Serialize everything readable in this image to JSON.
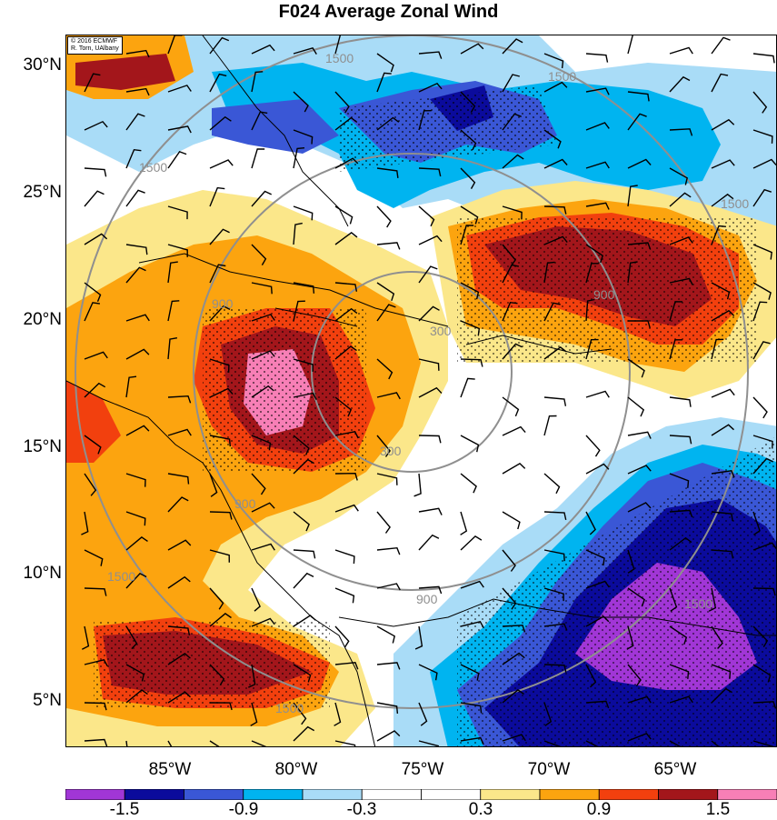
{
  "title": "F024 Average Zonal Wind",
  "credit": {
    "line1": "© 2016 ECMWF",
    "line2": "R. Torn, UAlbany"
  },
  "map": {
    "y_labels": [
      "30°N",
      "25°N",
      "20°N",
      "15°N",
      "10°N",
      "5°N"
    ],
    "x_labels": [
      "85°W",
      "80°W",
      "75°W",
      "70°W",
      "65°W"
    ],
    "range_ring_labels": [
      "300",
      "300",
      "900",
      "900",
      "900",
      "900",
      "1500",
      "1500",
      "1500",
      "1500",
      "1500",
      "1500",
      "1500"
    ]
  },
  "colorbar": {
    "colors": [
      "#a136d6",
      "#0b0b9c",
      "#3a57d6",
      "#00b4f0",
      "#a9dcf7",
      "#ffffff",
      "#ffffff",
      "#fbe78a",
      "#fca40f",
      "#f2400e",
      "#a3161b",
      "#f77fb6"
    ],
    "tick_labels": [
      "-1.5",
      "-0.9",
      "-0.3",
      "0.3",
      "0.9",
      "1.5"
    ]
  }
}
